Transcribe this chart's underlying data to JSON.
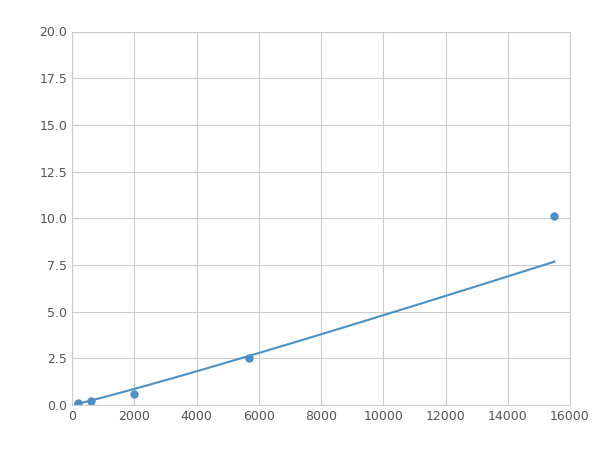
{
  "x": [
    200,
    600,
    2000,
    5700,
    15500
  ],
  "y": [
    0.1,
    0.2,
    0.6,
    2.5,
    10.1
  ],
  "marker_indices": [
    0,
    1,
    2,
    3,
    4
  ],
  "line_color": "#4a90c4",
  "marker_color": "#4a90c4",
  "marker_size": 5,
  "xlim": [
    0,
    16000
  ],
  "ylim": [
    0,
    20.0
  ],
  "xticks": [
    0,
    2000,
    4000,
    6000,
    8000,
    10000,
    12000,
    14000,
    16000
  ],
  "yticks": [
    0.0,
    2.5,
    5.0,
    7.5,
    10.0,
    12.5,
    15.0,
    17.5,
    20.0
  ],
  "grid": true,
  "background_color": "#ffffff",
  "figsize": [
    6.0,
    4.5
  ],
  "dpi": 100
}
